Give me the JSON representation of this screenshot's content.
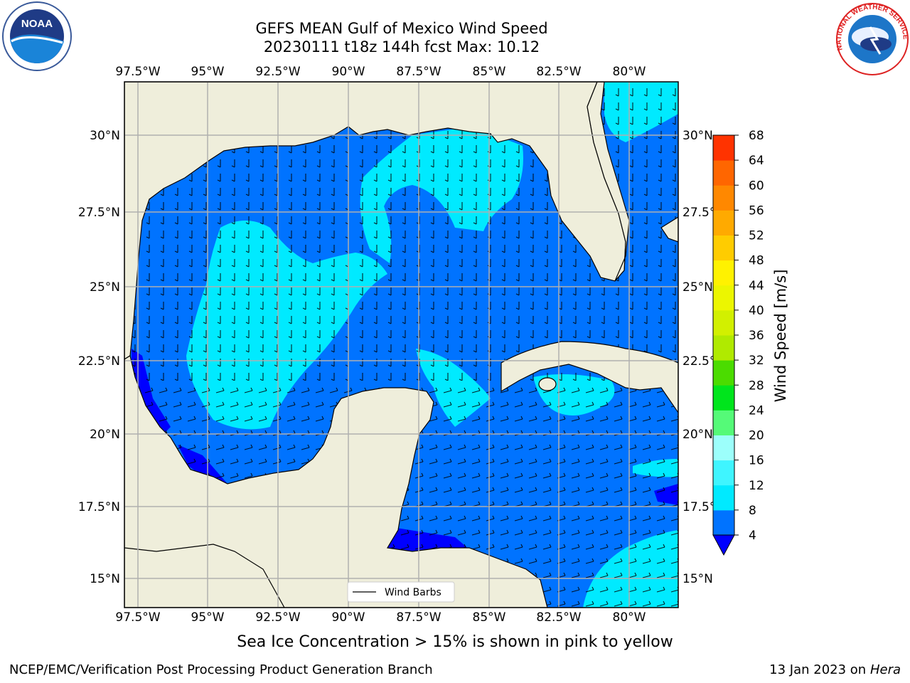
{
  "title": {
    "line1": "GEFS MEAN Gulf of Mexico Wind Speed",
    "line2": "20230111 t18z 144h fcst   Max: 10.12"
  },
  "map": {
    "lon_labels": [
      "97.5°W",
      "95°W",
      "92.5°W",
      "90°W",
      "87.5°W",
      "85°W",
      "82.5°W",
      "80°W"
    ],
    "lat_labels": [
      "30°N",
      "27.5°N",
      "25°N",
      "22.5°N",
      "20°N",
      "17.5°N",
      "15°N"
    ],
    "lon_values": [
      -97.5,
      -95,
      -92.5,
      -90,
      -87.5,
      -85,
      -82.5,
      -80
    ],
    "lat_values": [
      30,
      27.5,
      25,
      22.5,
      20,
      17.5,
      15
    ],
    "legend_label": "Wind Barbs",
    "colors": {
      "land": "#efeedb",
      "grid": "#b0b0b0"
    }
  },
  "colorbar": {
    "label": "Wind Speed [m/s]",
    "ticks": [
      "4",
      "8",
      "12",
      "16",
      "20",
      "24",
      "28",
      "32",
      "36",
      "40",
      "44",
      "48",
      "52",
      "56",
      "60",
      "64",
      "68"
    ],
    "colors": [
      "#0073ff",
      "#00eaff",
      "#3ff5ff",
      "#9cfffb",
      "#55fa78",
      "#00e51c",
      "#4bdc00",
      "#b0ea00",
      "#d2f000",
      "#ecf600",
      "#fff200",
      "#ffcc00",
      "#ffaa00",
      "#ff8800",
      "#ff6600",
      "#ff3300"
    ],
    "under_color": "#0000ff"
  },
  "note": "Sea Ice Concentration > 15% is shown in pink to yellow",
  "footer": {
    "left": "NCEP/EMC/Verification Post Processing Product Generation Branch",
    "right_prefix": "13 Jan 2023 on ",
    "right_machine": "Hera"
  },
  "logos": {
    "noaa_text": "NOAA",
    "nws_text": "NATIONAL WEATHER SERVICE"
  }
}
